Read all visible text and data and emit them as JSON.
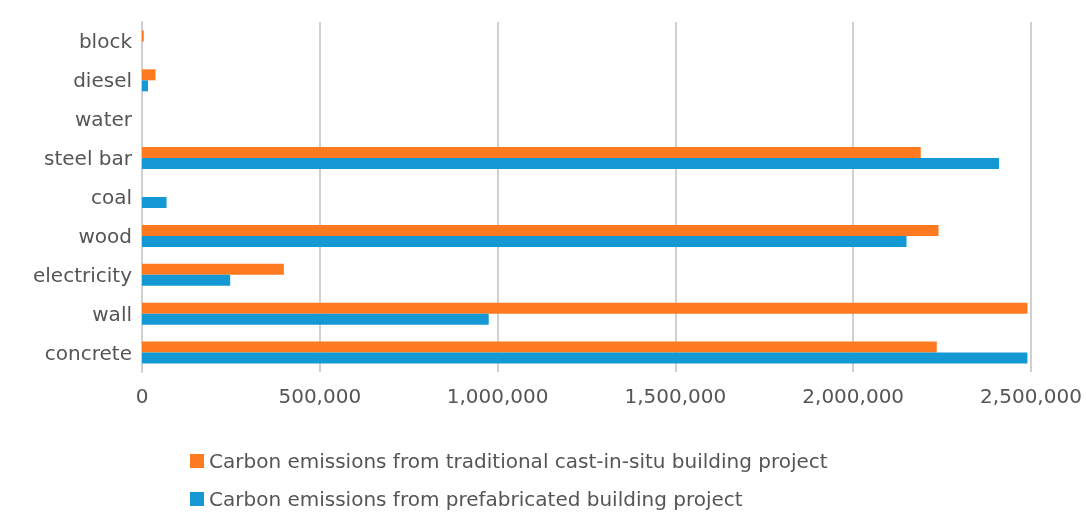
{
  "chart_data": {
    "type": "bar",
    "orientation": "horizontal",
    "categories": [
      "block",
      "diesel",
      "water",
      "steel bar",
      "coal",
      "wood",
      "electricity",
      "wall",
      "concrete"
    ],
    "series": [
      {
        "name": "Carbon emissions from traditional cast-in-situ building project",
        "color": "#fe7a21",
        "values": [
          5000,
          38000,
          0,
          2190000,
          0,
          2240000,
          399000,
          2490000,
          2235000
        ]
      },
      {
        "name": "Carbon emissions from prefabricated building project",
        "color": "#1499d5",
        "values": [
          0,
          17000,
          0,
          2410000,
          69000,
          2150000,
          248000,
          975000,
          2490000
        ]
      }
    ],
    "xlim": [
      0,
      2500000
    ],
    "xticks": [
      0,
      {
        "value": 500000,
        "label": "500,000"
      },
      {
        "value": 1000000,
        "label": "1,000,000"
      },
      {
        "value": 1500000,
        "label": "1,500,000"
      },
      {
        "value": 2000000,
        "label": "2,000,000"
      },
      {
        "value": 2500000,
        "label": "2,500,000"
      }
    ],
    "grid": "x",
    "legend": "bottom"
  }
}
